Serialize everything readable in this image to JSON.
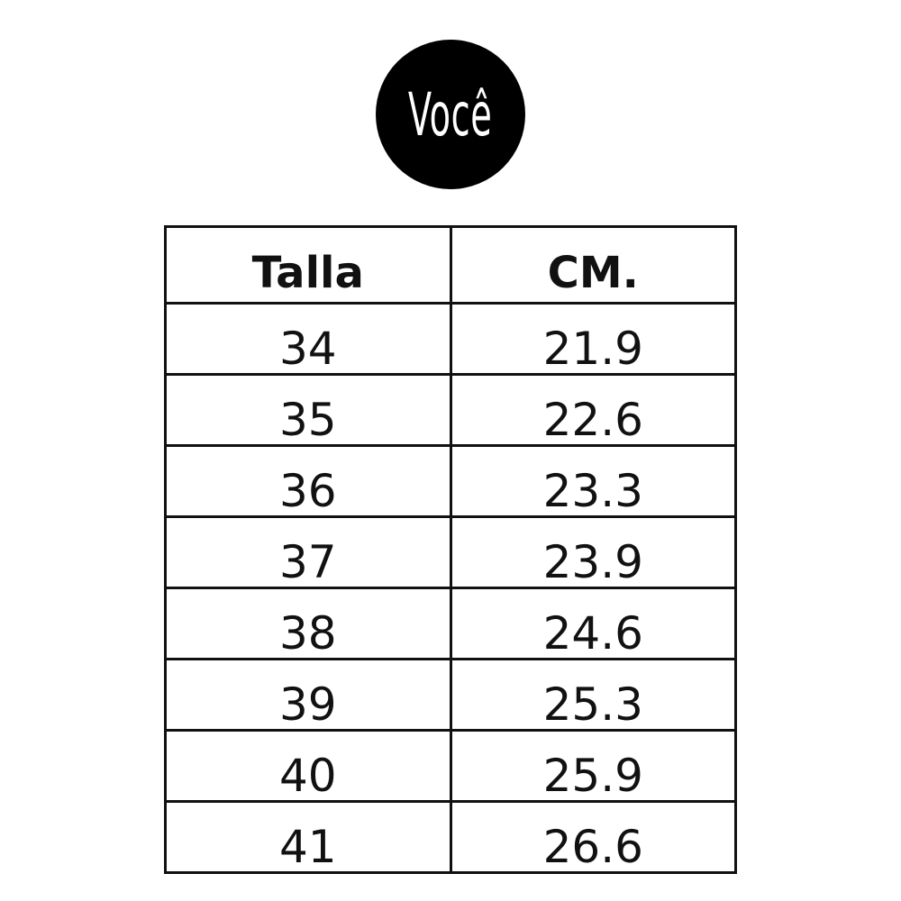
{
  "logo": {
    "text": "Você"
  },
  "table": {
    "header": [
      "Talla",
      "CM."
    ],
    "rows": [
      [
        "34",
        "21.9"
      ],
      [
        "35",
        "22.6"
      ],
      [
        "36",
        "23.3"
      ],
      [
        "37",
        "23.9"
      ],
      [
        "38",
        "24.6"
      ],
      [
        "39",
        "25.3"
      ],
      [
        "40",
        "25.9"
      ],
      [
        "41",
        "26.6"
      ]
    ]
  }
}
